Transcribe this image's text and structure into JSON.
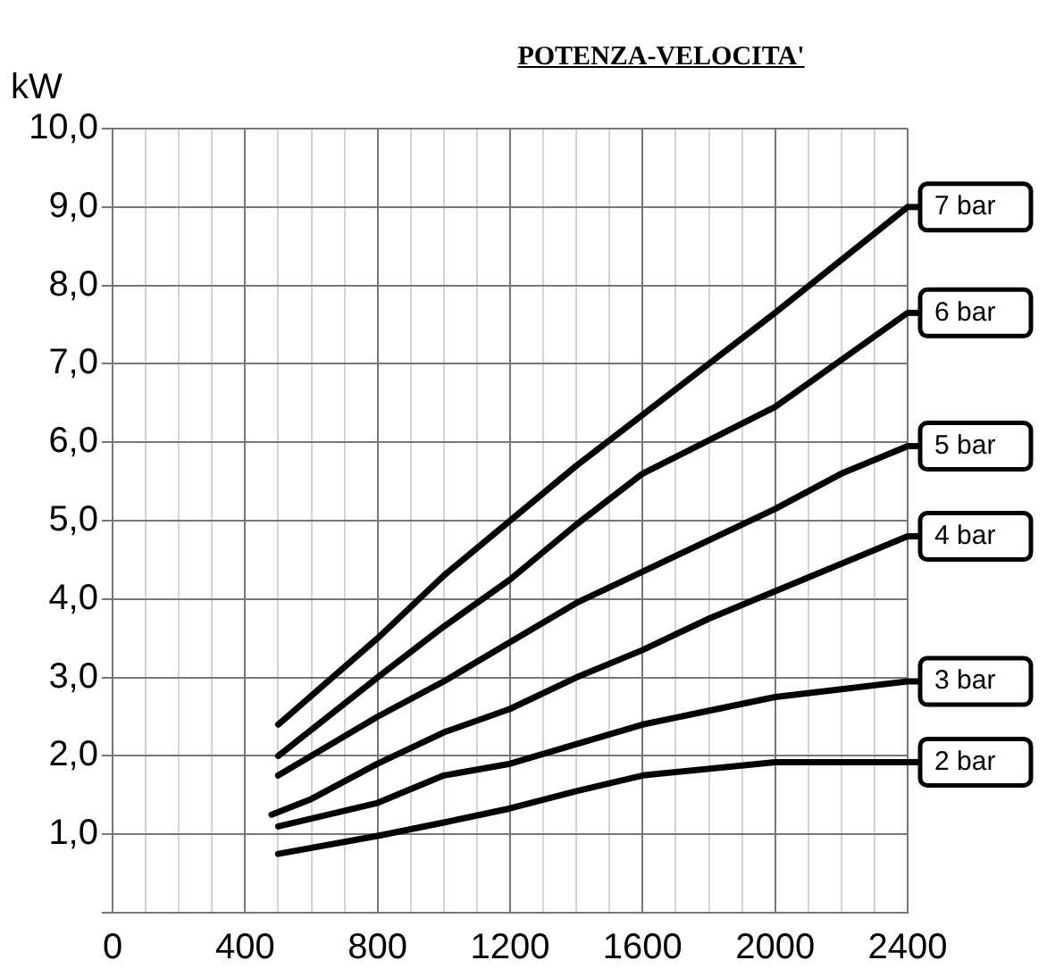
{
  "chart_data": {
    "type": "line",
    "title": "POTENZA-VELOCITA'",
    "ylabel": "kW",
    "xlim": [
      0,
      2400
    ],
    "ylim": [
      0,
      10
    ],
    "xticks": [
      0,
      {
        "value": 100,
        "label": null
      },
      {
        "value": 200,
        "label": null
      },
      {
        "value": 300,
        "label": null
      },
      400,
      {
        "value": 500,
        "label": null
      },
      {
        "value": 600,
        "label": null
      },
      {
        "value": 700,
        "label": null
      },
      800,
      {
        "value": 900,
        "label": null
      },
      {
        "value": 1000,
        "label": null
      },
      {
        "value": 1100,
        "label": null
      },
      1200,
      {
        "value": 1300,
        "label": null
      },
      {
        "value": 1400,
        "label": null
      },
      {
        "value": 1500,
        "label": null
      },
      1600,
      {
        "value": 1700,
        "label": null
      },
      {
        "value": 1800,
        "label": null
      },
      {
        "value": 1900,
        "label": null
      },
      2000,
      {
        "value": 2100,
        "label": null
      },
      {
        "value": 2200,
        "label": null
      },
      {
        "value": 2300,
        "label": null
      },
      2400
    ],
    "yticks": [
      {
        "value": 0,
        "label": null
      },
      {
        "value": 1,
        "label": "1,0"
      },
      {
        "value": 2,
        "label": "2,0"
      },
      {
        "value": 3,
        "label": "3,0"
      },
      {
        "value": 4,
        "label": "4,0"
      },
      {
        "value": 5,
        "label": "5,0"
      },
      {
        "value": 6,
        "label": "6,0"
      },
      {
        "value": 7,
        "label": "7,0"
      },
      {
        "value": 8,
        "label": "8,0"
      },
      {
        "value": 9,
        "label": "9,0"
      },
      {
        "value": 10,
        "label": "10,0"
      }
    ],
    "grid": true,
    "marker": "none",
    "legend": "right",
    "series": [
      {
        "name": "7 bar",
        "color": "#000000",
        "x": [
          500,
          800,
          1000,
          1200,
          1400,
          1600,
          2000,
          2400
        ],
        "values": [
          2.4,
          3.5,
          4.3,
          5.0,
          5.7,
          6.35,
          7.65,
          9.0
        ]
      },
      {
        "name": "6 bar",
        "color": "#000000",
        "x": [
          500,
          800,
          1000,
          1200,
          1400,
          1600,
          2000,
          2200,
          2400
        ],
        "values": [
          2.0,
          3.0,
          3.65,
          4.25,
          4.95,
          5.6,
          6.45,
          7.05,
          7.65
        ]
      },
      {
        "name": "5 bar",
        "color": "#000000",
        "x": [
          500,
          800,
          1000,
          1200,
          1400,
          1600,
          2000,
          2200,
          2400
        ],
        "values": [
          1.75,
          2.5,
          2.95,
          3.45,
          3.95,
          4.35,
          5.15,
          5.6,
          5.95
        ]
      },
      {
        "name": "4 bar",
        "color": "#000000",
        "x": [
          480,
          600,
          800,
          1000,
          1200,
          1400,
          1600,
          1800,
          2000,
          2400
        ],
        "values": [
          1.25,
          1.45,
          1.9,
          2.3,
          2.6,
          3.0,
          3.35,
          3.75,
          4.1,
          4.8
        ]
      },
      {
        "name": "3 bar",
        "color": "#000000",
        "x": [
          500,
          600,
          800,
          1000,
          1200,
          1600,
          2000,
          2400
        ],
        "values": [
          1.1,
          1.2,
          1.4,
          1.75,
          1.9,
          2.4,
          2.75,
          2.95
        ]
      },
      {
        "name": "2 bar",
        "color": "#000000",
        "x": [
          500,
          800,
          1000,
          1200,
          1400,
          1600,
          2000,
          2400
        ],
        "values": [
          0.75,
          0.98,
          1.15,
          1.33,
          1.55,
          1.75,
          1.92,
          1.92
        ]
      }
    ]
  }
}
